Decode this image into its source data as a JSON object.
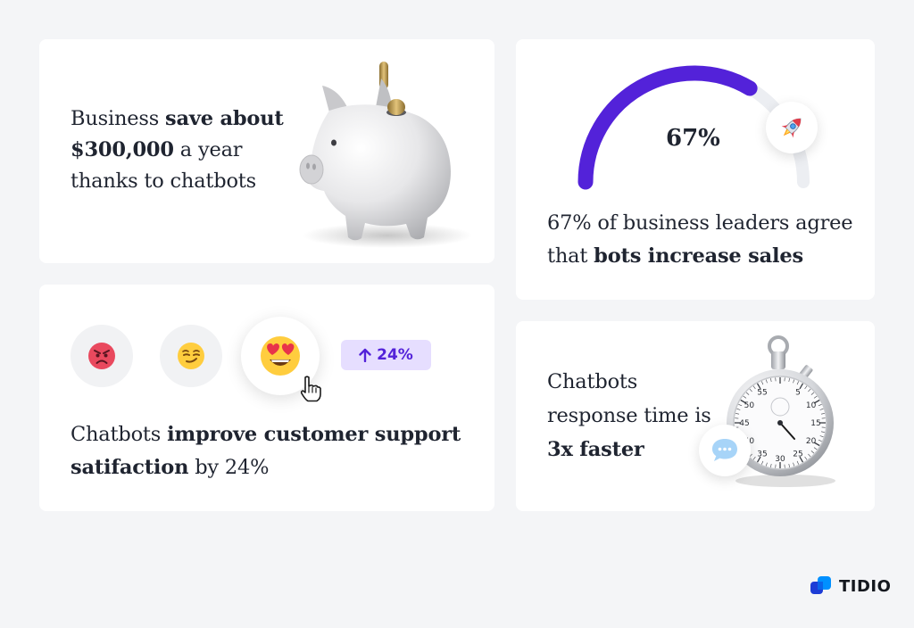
{
  "cards": {
    "savings": {
      "text_1": "Business ",
      "bold_1": "save about $300,000",
      "text_2": " a year thanks to chatbots",
      "image": "piggy-bank-with-coin"
    },
    "sales": {
      "gauge_value": "67%",
      "gauge_fraction": 0.67,
      "text_1": "67% of business leaders agree that ",
      "bold_1": "bots increase sales",
      "icon": "rocket-icon"
    },
    "satisfaction": {
      "emojis": [
        "angry-face-icon",
        "smirking-face-icon",
        "heart-eyes-face-icon"
      ],
      "badge_label": "24%",
      "text_1": "Chatbots ",
      "bold_1": "improve customer support satifaction",
      "text_2": " by 24%"
    },
    "response": {
      "text_1": "Chatbots response time is ",
      "bold_1": "3x faster",
      "image": "stopwatch",
      "stopwatch_numbers": [
        "5",
        "10",
        "15",
        "20",
        "25",
        "30",
        "35",
        "40",
        "45",
        "50",
        "55"
      ]
    }
  },
  "brand": {
    "name": "TIDIO"
  },
  "colors": {
    "accent": "#5322d9",
    "gauge_track": "#eceef2",
    "badge_bg": "#e6deff",
    "logo_blue": "#0090ff",
    "logo_dark": "#1d3dd6"
  }
}
